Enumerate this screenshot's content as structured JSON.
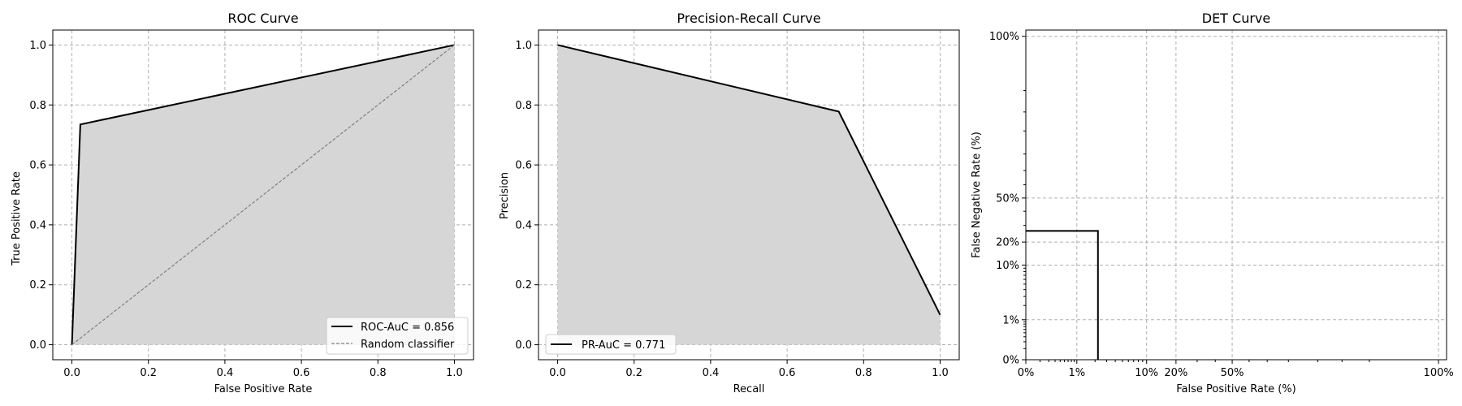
{
  "chart_data": [
    {
      "type": "line",
      "title": "ROC Curve",
      "xlabel": "False Positive Rate",
      "ylabel": "True Positive Rate",
      "xlim": [
        -0.05,
        1.05
      ],
      "ylim": [
        -0.05,
        1.05
      ],
      "grid": true,
      "xticks": [
        0.0,
        0.2,
        0.4,
        0.6,
        0.8,
        1.0
      ],
      "xtick_labels": [
        "0.0",
        "0.2",
        "0.4",
        "0.6",
        "0.8",
        "1.0"
      ],
      "yticks": [
        0.0,
        0.2,
        0.4,
        0.6,
        0.8,
        1.0
      ],
      "ytick_labels": [
        "0.0",
        "0.2",
        "0.4",
        "0.6",
        "0.8",
        "1.0"
      ],
      "legend_position": "lower right",
      "series": [
        {
          "name": "ROC-AuC = 0.856",
          "style": "solid",
          "color": "#000000",
          "filled": true,
          "x": [
            0.0,
            0.022,
            1.0
          ],
          "y": [
            0.0,
            0.735,
            1.0
          ]
        },
        {
          "name": "Random classifier",
          "style": "dashed",
          "color": "#808080",
          "filled": false,
          "x": [
            0.0,
            1.0
          ],
          "y": [
            0.0,
            1.0
          ]
        }
      ]
    },
    {
      "type": "line",
      "title": "Precision-Recall Curve",
      "xlabel": "Recall",
      "ylabel": "Precision",
      "xlim": [
        -0.05,
        1.05
      ],
      "ylim": [
        -0.05,
        1.05
      ],
      "grid": true,
      "xticks": [
        0.0,
        0.2,
        0.4,
        0.6,
        0.8,
        1.0
      ],
      "xtick_labels": [
        "0.0",
        "0.2",
        "0.4",
        "0.6",
        "0.8",
        "1.0"
      ],
      "yticks": [
        0.0,
        0.2,
        0.4,
        0.6,
        0.8,
        1.0
      ],
      "ytick_labels": [
        "0.0",
        "0.2",
        "0.4",
        "0.6",
        "0.8",
        "1.0"
      ],
      "legend_position": "lower left",
      "series": [
        {
          "name": "PR-AuC = 0.771",
          "style": "solid",
          "color": "#000000",
          "filled": true,
          "x": [
            0.0,
            0.735,
            1.0
          ],
          "y": [
            1.0,
            0.778,
            0.1
          ]
        }
      ]
    },
    {
      "type": "line",
      "title": "DET Curve",
      "xlabel": "False Positive Rate (%)",
      "ylabel": "False Negative Rate (%)",
      "xscale": "probit",
      "yscale": "probit",
      "xlim": [
        0.001,
        0.999
      ],
      "ylim": [
        0.001,
        0.999
      ],
      "grid": true,
      "xticks": [
        0.001,
        0.01,
        0.1,
        0.2,
        0.5,
        0.999
      ],
      "xtick_labels": [
        "0%",
        "1%",
        "10%",
        "20%",
        "50%",
        "100%"
      ],
      "yticks": [
        0.001,
        0.01,
        0.1,
        0.2,
        0.5,
        0.999
      ],
      "ytick_labels": [
        "0%",
        "1%",
        "10%",
        "20%",
        "50%",
        "100%"
      ],
      "series": [
        {
          "style": "solid",
          "color": "#000000",
          "x": [
            0.001,
            0.0222,
            0.0222
          ],
          "y": [
            0.265,
            0.265,
            0.001
          ]
        }
      ]
    }
  ]
}
